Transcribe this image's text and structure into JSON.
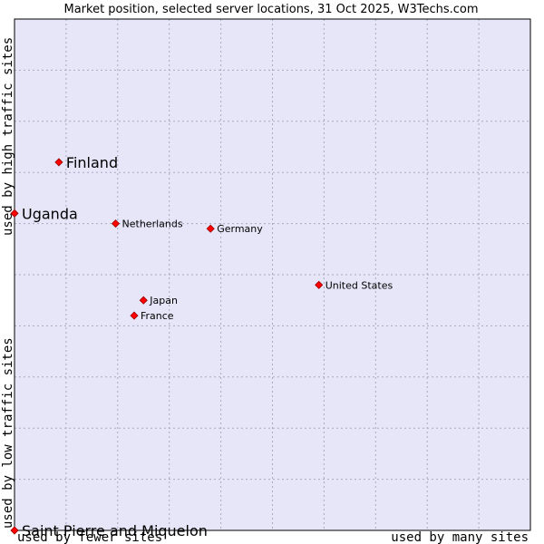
{
  "chart_data": {
    "type": "scatter",
    "title": "Market position, selected server locations, 31 Oct 2025, W3Techs.com",
    "x_axis": {
      "left_label": "used by fewer sites",
      "right_label": "used by many sites",
      "range": [
        0,
        10
      ]
    },
    "y_axis": {
      "top_label": "used by high traffic sites",
      "bottom_label": "used by low traffic sites",
      "range": [
        0,
        10
      ]
    },
    "grid": true,
    "colors": {
      "plot_bg": "#e6e6f8",
      "grid": "#a8a8c0",
      "marker": "#ff0000",
      "marker_stroke": "#990000"
    },
    "points": [
      {
        "name": "Finland",
        "x": 0.86,
        "y": 7.2,
        "emphasis": true
      },
      {
        "name": "Uganda",
        "x": 0.0,
        "y": 6.2,
        "emphasis": true
      },
      {
        "name": "Netherlands",
        "x": 1.96,
        "y": 6.0,
        "emphasis": false
      },
      {
        "name": "Germany",
        "x": 3.8,
        "y": 5.9,
        "emphasis": false
      },
      {
        "name": "United States",
        "x": 5.9,
        "y": 4.8,
        "emphasis": false
      },
      {
        "name": "Japan",
        "x": 2.5,
        "y": 4.5,
        "emphasis": false
      },
      {
        "name": "France",
        "x": 2.32,
        "y": 4.2,
        "emphasis": false
      },
      {
        "name": "Saint Pierre and Miquelon",
        "x": 0.0,
        "y": 0.0,
        "emphasis": true
      }
    ]
  }
}
